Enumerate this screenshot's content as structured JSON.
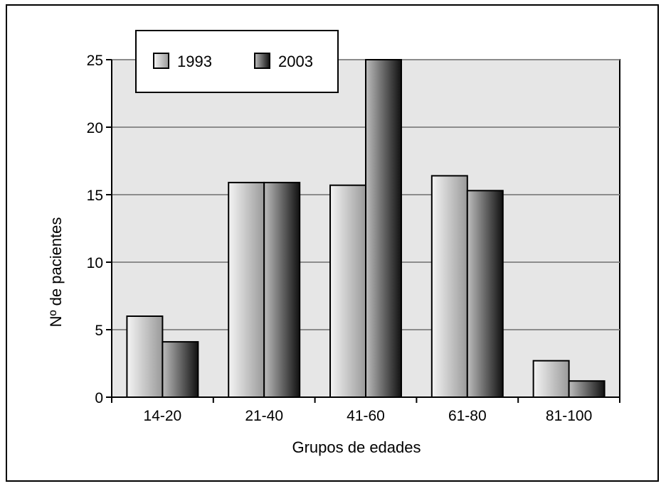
{
  "chart_data": {
    "type": "bar",
    "categories": [
      "14-20",
      "21-40",
      "41-60",
      "61-80",
      "81-100"
    ],
    "series": [
      {
        "name": "1993",
        "values": [
          6,
          15.9,
          15.7,
          16.4,
          2.7
        ]
      },
      {
        "name": "2003",
        "values": [
          4.1,
          15.9,
          25,
          15.3,
          1.2
        ]
      }
    ],
    "title": "",
    "xlabel": "Grupos de edades",
    "ylabel": "Nº de pacientes",
    "ylim": [
      0,
      25
    ],
    "yticks": [
      0,
      5,
      10,
      15,
      20,
      25
    ],
    "grid": true,
    "legend_position": "top-left",
    "colors": {
      "plot_background": "#e6e6e6",
      "gridline": "#8c8c8c",
      "series_1993_light": "#f4f4f4",
      "series_1993_dark": "#9a9a9a",
      "series_2003_light": "#bdbdbd",
      "series_2003_dark": "#111111"
    }
  }
}
